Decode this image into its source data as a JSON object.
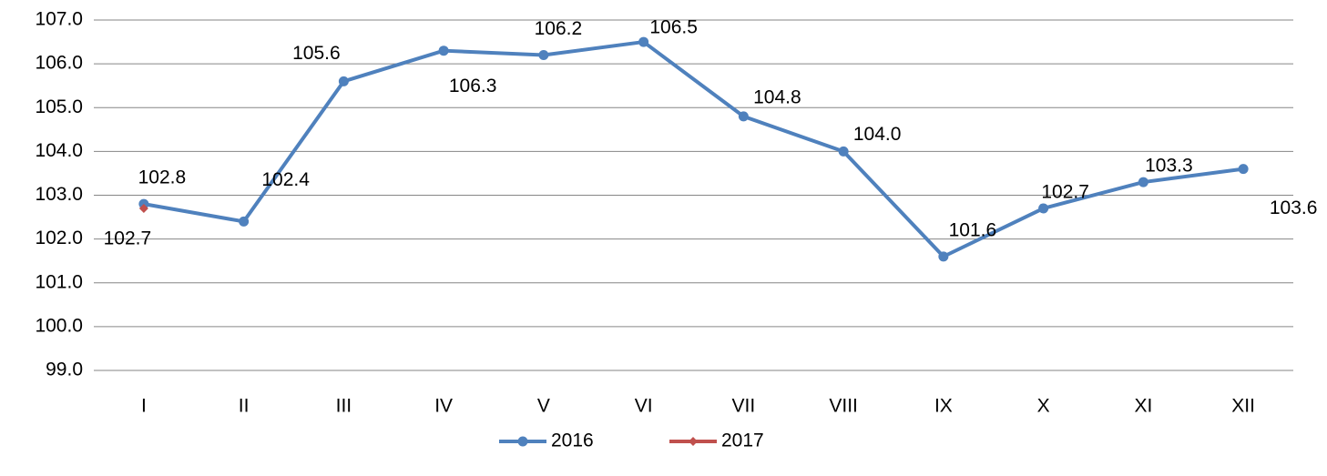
{
  "chart_data": {
    "type": "line",
    "categories": [
      "I",
      "II",
      "III",
      "IV",
      "V",
      "VI",
      "VII",
      "VIII",
      "IX",
      "X",
      "XI",
      "XII"
    ],
    "series": [
      {
        "name": "2016",
        "color": "#4f81bd",
        "values": [
          102.8,
          102.4,
          105.6,
          106.3,
          106.2,
          106.5,
          104.8,
          104.0,
          101.6,
          102.7,
          103.3,
          103.6
        ],
        "value_labels": [
          "102.8",
          "102.4",
          "105.6",
          "106.3",
          "106.2",
          "106.5",
          "104.8",
          "104.0",
          "101.6",
          "102.7",
          "103.3",
          "103.6"
        ]
      },
      {
        "name": "2017",
        "color": "#c0504d",
        "values": [
          102.7,
          null,
          null,
          null,
          null,
          null,
          null,
          null,
          null,
          null,
          null,
          null
        ],
        "value_labels": [
          "102.7",
          null,
          null,
          null,
          null,
          null,
          null,
          null,
          null,
          null,
          null,
          null
        ]
      }
    ],
    "ylim": [
      99,
      107
    ],
    "yticks": [
      {
        "value": 99,
        "label": "99.0"
      },
      {
        "value": 100,
        "label": "100.0"
      },
      {
        "value": 101,
        "label": "101.0"
      },
      {
        "value": 102,
        "label": "102.0"
      },
      {
        "value": 103,
        "label": "103.0"
      },
      {
        "value": 104,
        "label": "104.0"
      },
      {
        "value": 105,
        "label": "105.0"
      },
      {
        "value": 106,
        "label": "106.0"
      },
      {
        "value": 107,
        "label": "107.0"
      }
    ],
    "grid": true,
    "legend": "bottom"
  }
}
